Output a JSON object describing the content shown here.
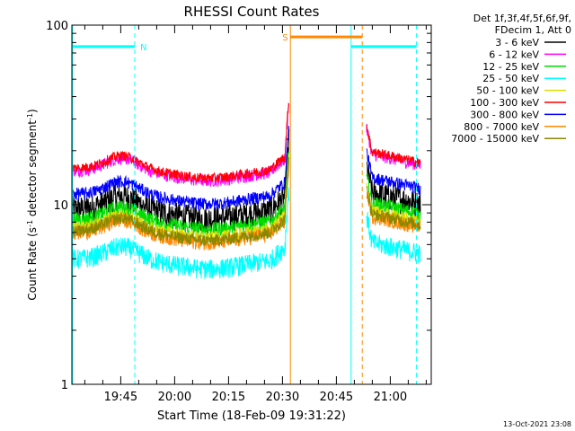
{
  "chart_data": {
    "type": "line",
    "title": "RHESSI Count Rates",
    "xlabel": "Start Time (18-Feb-09 19:31:22)",
    "ylabel": "Count Rate (s⁻¹ detector segment⁻¹)",
    "ylabel_main": "Count Rate (s",
    "ylabel_sup1": "-1",
    "ylabel_mid": " detector segment",
    "ylabel_sup2": "-1",
    "ylabel_end": ")",
    "yscale": "log",
    "ylim": [
      1,
      100
    ],
    "xlim_minutes": [
      0,
      100
    ],
    "x_ticks": [
      {
        "label": "19:45",
        "minute": 13.6
      },
      {
        "label": "20:00",
        "minute": 28.6
      },
      {
        "label": "20:15",
        "minute": 43.6
      },
      {
        "label": "20:30",
        "minute": 58.6
      },
      {
        "label": "20:45",
        "minute": 73.6
      },
      {
        "label": "21:00",
        "minute": 88.6
      }
    ],
    "y_ticks": [
      {
        "label": "1",
        "value": 1
      },
      {
        "label": "10",
        "value": 10
      },
      {
        "label": "100",
        "value": 100
      }
    ],
    "legend_header": [
      "Det 1f,3f,4f,5f,6f,9f,",
      "FDecim 1, Att 0"
    ],
    "series": [
      {
        "name": "3 - 6 keV",
        "color": "#000000",
        "base": 9.5,
        "noise": 0.11
      },
      {
        "name": "6 - 12 keV",
        "color": "#ff00ff",
        "base": 15.5,
        "noise": 0.05
      },
      {
        "name": "12 - 25 keV",
        "color": "#00dd00",
        "base": 8.3,
        "noise": 0.06
      },
      {
        "name": "25 - 50 keV",
        "color": "#00ffff",
        "base": 5.0,
        "noise": 0.08
      },
      {
        "name": "50 - 100 keV",
        "color": "#dddd00",
        "base": 7.5,
        "noise": 0.05
      },
      {
        "name": "100 - 300 keV",
        "color": "#ff0000",
        "base": 16.0,
        "noise": 0.04
      },
      {
        "name": "300 - 800 keV",
        "color": "#0000ff",
        "base": 11.5,
        "noise": 0.05
      },
      {
        "name": "800 - 7000 keV",
        "color": "#ff8800",
        "base": 7.0,
        "noise": 0.06
      },
      {
        "name": "7000 - 15000 keV",
        "color": "#888800",
        "base": 7.2,
        "noise": 0.05
      }
    ],
    "data_segments": [
      [
        0,
        60.5
      ],
      [
        82,
        97
      ]
    ],
    "vlines": [
      {
        "minute": 0.2,
        "color": "#00ffff",
        "style": "solid"
      },
      {
        "minute": 17.5,
        "color": "#00ffff",
        "style": "dashed"
      },
      {
        "minute": 60.8,
        "color": "#ff8800",
        "style": "solid"
      },
      {
        "minute": 77.7,
        "color": "#00ffff",
        "style": "solid"
      },
      {
        "minute": 80.8,
        "color": "#ff8800",
        "style": "dashed"
      },
      {
        "minute": 95.9,
        "color": "#00ffff",
        "style": "dashed"
      }
    ],
    "hbars": [
      {
        "from": 0.2,
        "to": 17.5,
        "value": 76,
        "color": "#00ffff",
        "label": "N"
      },
      {
        "from": 60.8,
        "to": 80.8,
        "value": 86,
        "color": "#ff8800",
        "label": "S"
      },
      {
        "from": 77.7,
        "to": 95.9,
        "value": 76,
        "color": "#00ffff",
        "label": ""
      }
    ],
    "grid": false,
    "legend_position": "right"
  },
  "footer": {
    "timestamp": "13-Oct-2021 23:08"
  }
}
